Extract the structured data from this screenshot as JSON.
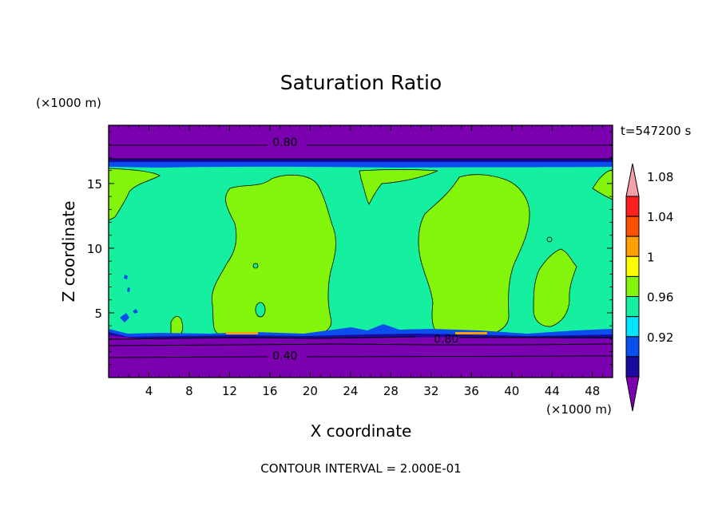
{
  "chart_data": {
    "type": "heatmap",
    "title": "Saturation Ratio",
    "xlabel": "X coordinate",
    "ylabel": "Z coordinate",
    "x_unit": "(×1000 m)",
    "y_unit": "(×1000 m)",
    "time_label": "t=547200 s",
    "footer": "CONTOUR INTERVAL = 2.000E-01",
    "xlim": [
      0,
      50
    ],
    "ylim": [
      0,
      19.5
    ],
    "x_ticks": [
      4,
      8,
      12,
      16,
      20,
      24,
      28,
      32,
      36,
      40,
      44,
      48
    ],
    "y_ticks": [
      5,
      10,
      15
    ],
    "contour_labels": [
      {
        "text": "0.80",
        "x": 17.5,
        "y": 18.2
      },
      {
        "text": "0.80",
        "x": 33.5,
        "y": 3.0
      },
      {
        "text": "0.40",
        "x": 17.5,
        "y": 1.7
      }
    ],
    "colorbar": {
      "levels": [
        "0.92",
        "0.96",
        "1",
        "1.04",
        "1.08"
      ],
      "colors": [
        "#7b00b0",
        "#1a0aa0",
        "#0a4ef0",
        "#00e4ff",
        "#14f0a0",
        "#82f50a",
        "#ffff00",
        "#ffa000",
        "#ff5000",
        "#ff2020",
        "#f4a0a8"
      ]
    },
    "layers": {
      "background": "#14f0a0",
      "dry_top": "#7b00b0",
      "dry_bottom": "#7b00b0",
      "supersaturated": "#82f50a",
      "blue_band": "#0a4ef0",
      "navy_band": "#1a0aa0",
      "orange_spot": "#ffa000"
    }
  }
}
